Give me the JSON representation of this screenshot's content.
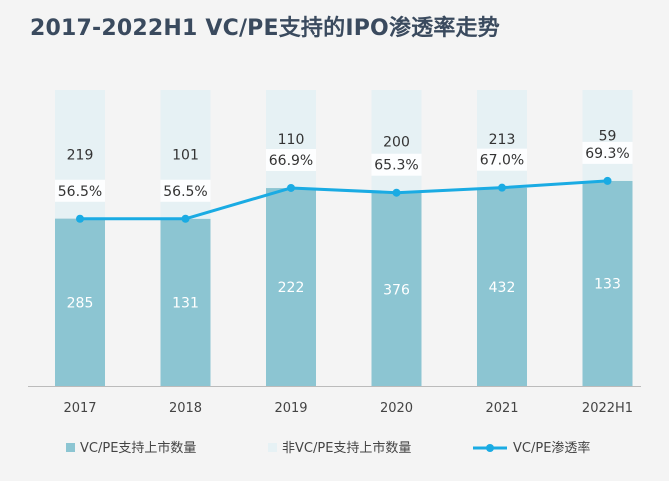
{
  "title": "2017-2022H1 VC/PE支持的IPO渗透率走势",
  "colors": {
    "vcpe_bar": "#8cc5d2",
    "non_vcpe_bar": "#e6f1f4",
    "rate_line": "#1aabe3",
    "vcpe_label": "#ffffff",
    "non_vcpe_label": "#333333",
    "axis": "#bbbbbb",
    "title": "#3a4a5e"
  },
  "chart_data": {
    "type": "bar",
    "stacked": true,
    "normalized": true,
    "categories": [
      "2017",
      "2018",
      "2019",
      "2020",
      "2021",
      "2022H1"
    ],
    "series": [
      {
        "name": "VC/PE支持上市数量",
        "kind": "bar",
        "values": [
          285,
          131,
          222,
          376,
          432,
          133
        ]
      },
      {
        "name": "非VC/PE支持上市数量",
        "kind": "bar",
        "values": [
          219,
          101,
          110,
          200,
          213,
          59
        ]
      },
      {
        "name": "VC/PE渗透率",
        "kind": "line",
        "values": [
          56.5,
          56.5,
          66.9,
          65.3,
          67.0,
          69.3
        ],
        "labels": [
          "56.5%",
          "56.5%",
          "66.9%",
          "65.3%",
          "67.0%",
          "69.3%"
        ]
      }
    ],
    "ylim": [
      0,
      100
    ],
    "legend_position": "bottom",
    "grid": false
  }
}
